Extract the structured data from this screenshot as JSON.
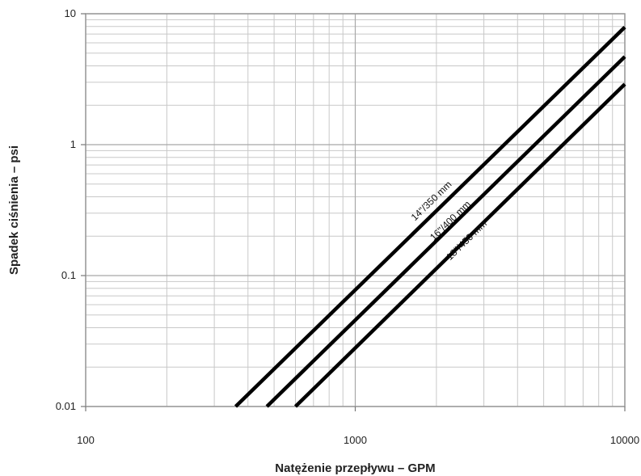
{
  "chart_data": {
    "type": "line",
    "title": "",
    "xlabel": "Natężenie przepływu – GPM",
    "ylabel": "Spadek ciśnienia – psi",
    "x_scale": "log",
    "y_scale": "log",
    "xlim": [
      100,
      10000
    ],
    "ylim": [
      0.01,
      10
    ],
    "x_ticks": [
      100,
      1000,
      10000
    ],
    "x_tick_labels": [
      "100",
      "1000",
      "10000"
    ],
    "y_ticks": [
      0.01,
      0.1,
      1,
      10
    ],
    "y_tick_labels": [
      "0.01",
      "0.1",
      "1",
      "10"
    ],
    "grid": true,
    "legend": "none",
    "series": [
      {
        "name": "14\"/350 mm",
        "x": [
          360,
          10000
        ],
        "y": [
          0.01,
          7.9
        ],
        "label_at": [
          2000,
          0.34
        ]
      },
      {
        "name": "16\"/400 mm",
        "x": [
          470,
          10000
        ],
        "y": [
          0.01,
          4.7
        ],
        "label_at": [
          2350,
          0.24
        ]
      },
      {
        "name": "18\"/450 mm",
        "x": [
          600,
          10000
        ],
        "y": [
          0.01,
          2.9
        ],
        "label_at": [
          2700,
          0.17
        ]
      }
    ],
    "colors": {
      "line": "#000000",
      "grid": "#c8c8c8",
      "frame": "#9a9a9a"
    }
  }
}
